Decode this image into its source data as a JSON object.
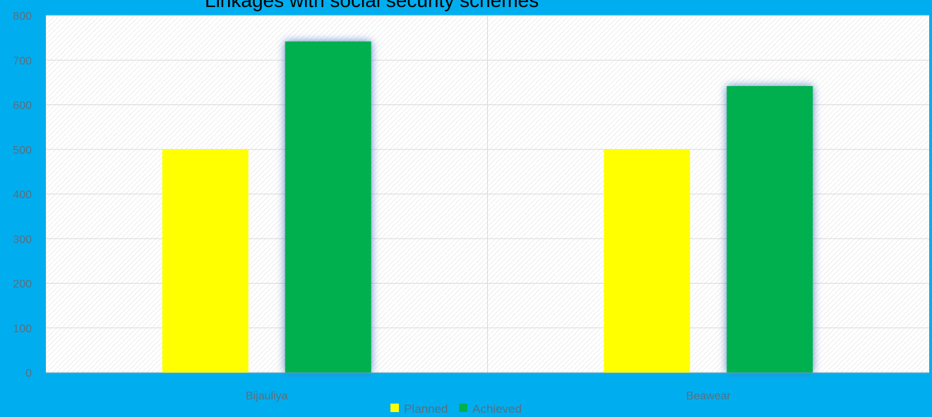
{
  "chart_data": {
    "type": "bar",
    "title": "Linkages with social security schemes",
    "categories": [
      "Bijauliya",
      "Beawear"
    ],
    "series": [
      {
        "name": "Planned",
        "values": [
          500,
          500
        ],
        "color": "#ffff00"
      },
      {
        "name": "Achieved",
        "values": [
          742,
          642
        ],
        "color": "#00b050"
      }
    ],
    "ylim": [
      0,
      800
    ],
    "yticks": [
      0,
      100,
      200,
      300,
      400,
      500,
      600,
      700,
      800
    ],
    "xlabel": "",
    "ylabel": "",
    "grid": true,
    "legend": "bottom",
    "colors": {
      "background": "#00aeef",
      "plot_area": "#ffffff",
      "grid": "#d9d9d9",
      "text": "#5a6e7e",
      "glow": "#4a78c2"
    }
  }
}
